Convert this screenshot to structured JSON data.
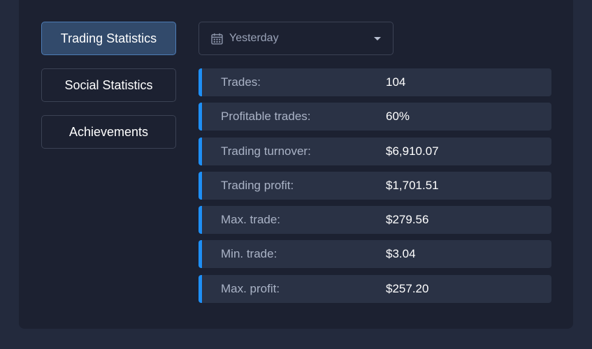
{
  "nav": {
    "items": [
      {
        "label": "Trading Statistics",
        "active": true
      },
      {
        "label": "Social Statistics",
        "active": false
      },
      {
        "label": "Achievements",
        "active": false
      }
    ]
  },
  "period": {
    "selected": "Yesterday",
    "icon": "calendar-icon"
  },
  "stats": [
    {
      "label": "Trades:",
      "value": "104"
    },
    {
      "label": "Profitable trades:",
      "value": "60%"
    },
    {
      "label": "Trading turnover:",
      "value": "$6,910.07"
    },
    {
      "label": "Trading profit:",
      "value": "$1,701.51"
    },
    {
      "label": "Max. trade:",
      "value": "$279.56"
    },
    {
      "label": "Min. trade:",
      "value": "$3.04"
    },
    {
      "label": "Max. profit:",
      "value": "$257.20"
    }
  ],
  "colors": {
    "background": "#232a3d",
    "panel": "#1c2131",
    "row": "#2a3245",
    "accent": "#1e8ff5",
    "active_tab": "#324a6b"
  }
}
